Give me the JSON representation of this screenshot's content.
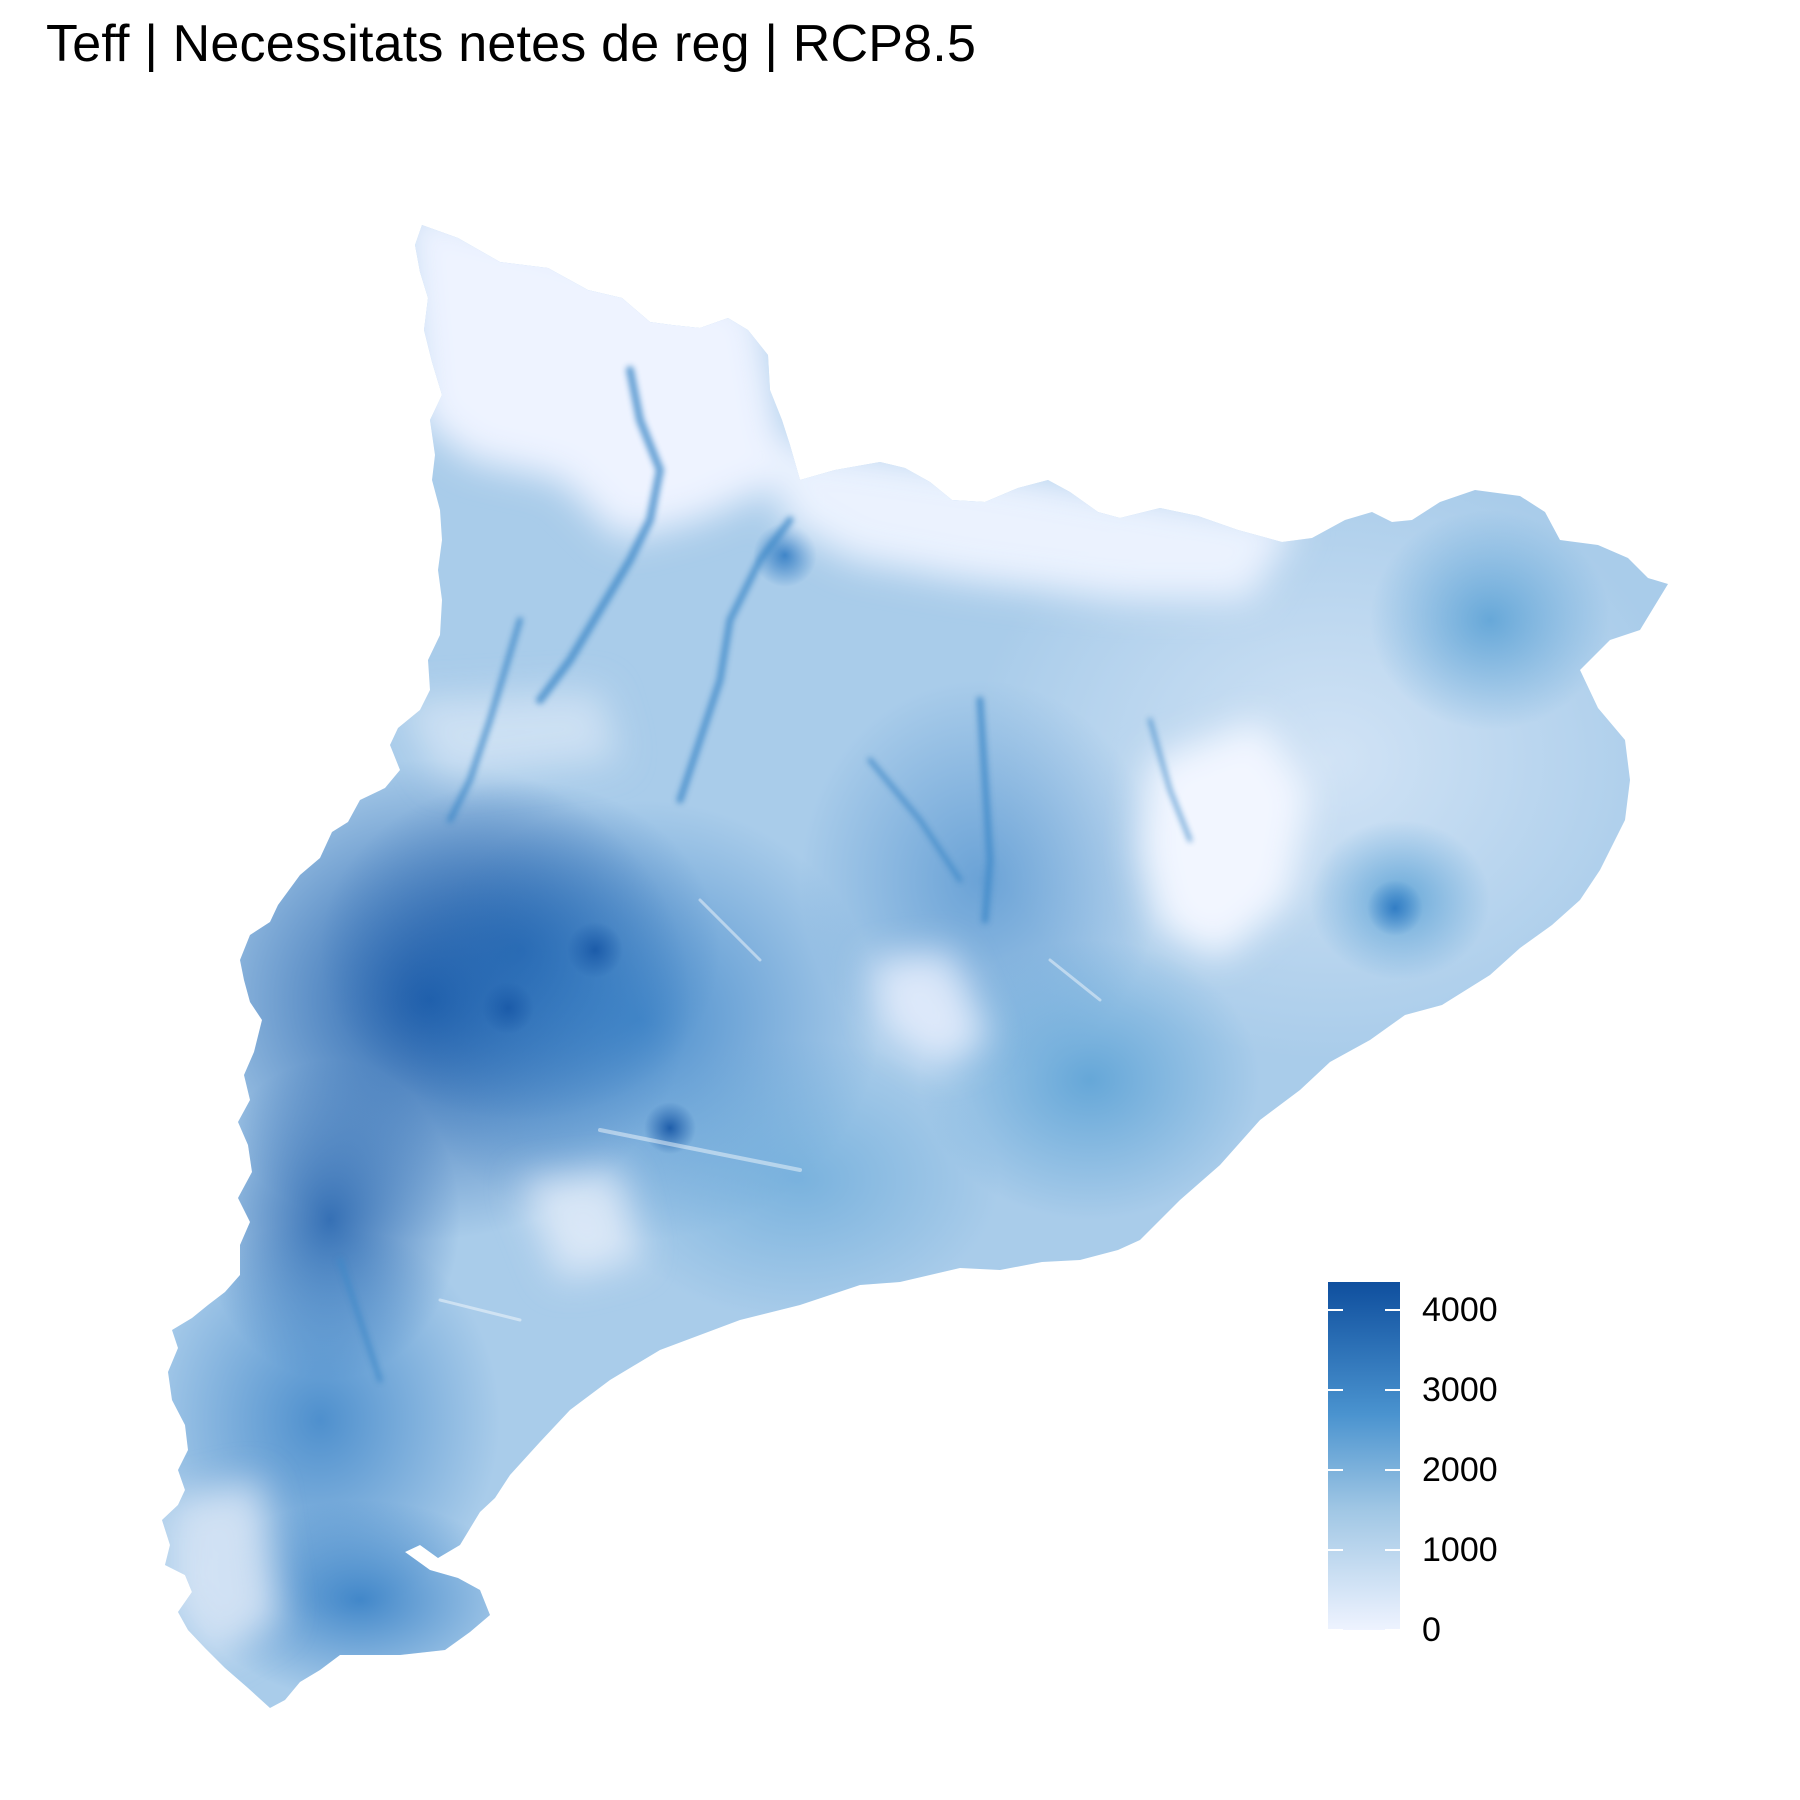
{
  "title": "Teff | Necessitats netes de reg | RCP8.5",
  "legend": {
    "min": 0,
    "max": 4350,
    "ticks": [
      {
        "value": 0,
        "label": "0"
      },
      {
        "value": 1000,
        "label": "1000"
      },
      {
        "value": 2000,
        "label": "2000"
      },
      {
        "value": 3000,
        "label": "3000"
      },
      {
        "value": 4000,
        "label": "4000"
      }
    ],
    "colors": {
      "low": "#eef3ff",
      "high": "#0f4f9e"
    }
  }
}
